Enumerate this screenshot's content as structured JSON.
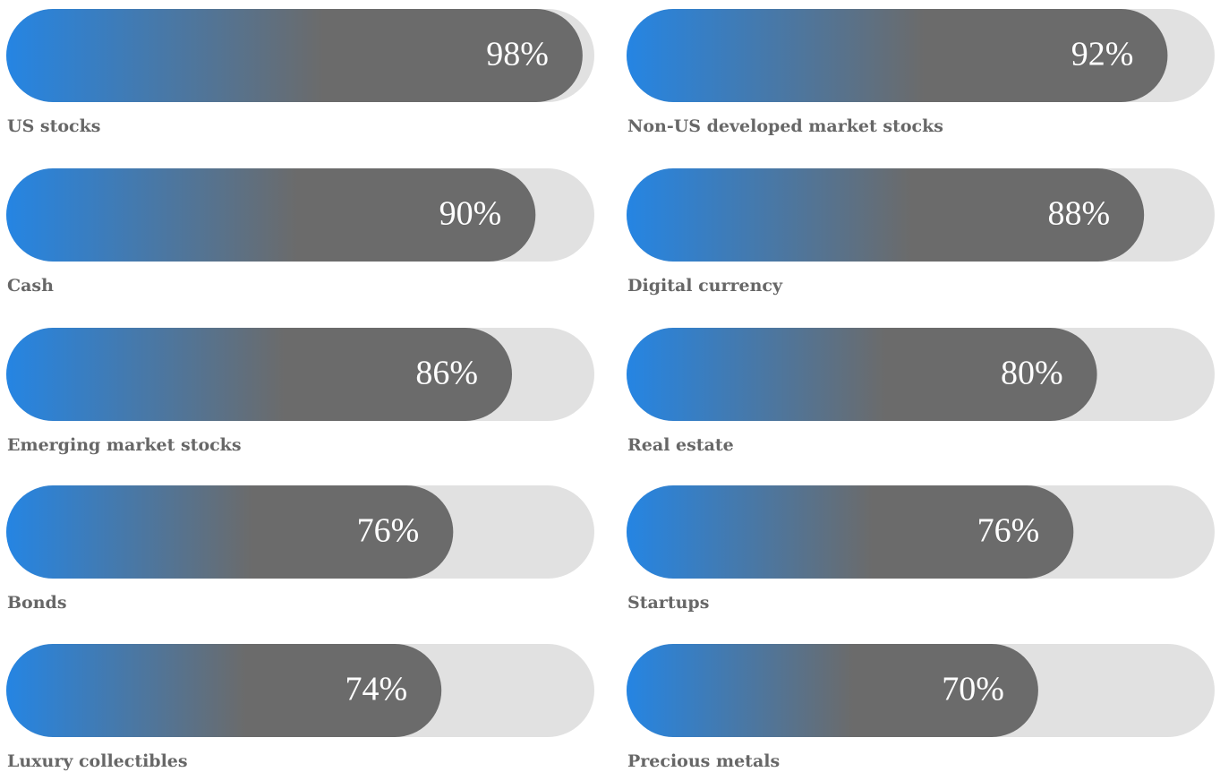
{
  "chart_data": {
    "type": "progress",
    "categories": [
      "US stocks",
      "Non-US developed market stocks",
      "Cash",
      "Digital currency",
      "Emerging market stocks",
      "Real estate",
      "Bonds",
      "Startups",
      "Luxury collectibles",
      "Precious metals"
    ],
    "values": [
      98,
      92,
      90,
      88,
      86,
      80,
      76,
      76,
      74,
      70
    ],
    "value_labels": [
      "98%",
      "92%",
      "90%",
      "88%",
      "86%",
      "80%",
      "76%",
      "76%",
      "74%",
      "70%"
    ],
    "xlim": [
      0,
      100
    ],
    "color": [
      "#2585e3",
      "#6b6b6b"
    ],
    "track_color": "#e1e1e1"
  }
}
